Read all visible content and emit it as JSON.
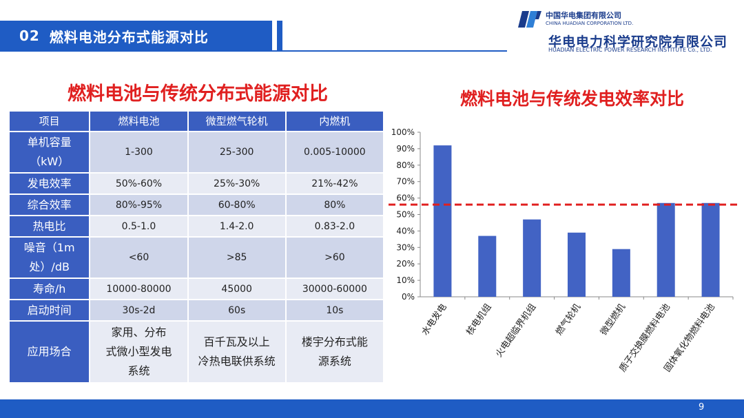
{
  "header": {
    "section_number": "02",
    "section_title": "燃料电池分布式能源对比",
    "group_name_cn": "中国华电集团有限公司",
    "group_name_en": "CHINA HUADIAN CORPORATION LTD.",
    "institute_name_cn": "华电电力科学研究院有限公司",
    "institute_name_en": "HUADIAN ELECTRIC POWER RESEARCH INSTITUTE Co., LTD."
  },
  "left_title": "燃料电池与传统分布式能源对比",
  "right_title": "燃料电池与传统发电效率对比",
  "table": {
    "headers": [
      "项目",
      "燃料电池",
      "微型燃气轮机",
      "内燃机"
    ],
    "rows": [
      {
        "label": [
          "单机容量",
          "（kW）"
        ],
        "values": [
          "1-300",
          "25-300",
          "0.005-10000"
        ]
      },
      {
        "label": [
          "发电效率"
        ],
        "values": [
          "50%-60%",
          "25%-30%",
          "21%-42%"
        ]
      },
      {
        "label": [
          "综合效率"
        ],
        "values": [
          "80%-95%",
          "60-80%",
          "80%"
        ]
      },
      {
        "label": [
          "热电比"
        ],
        "values": [
          "0.5-1.0",
          "1.4-2.0",
          "0.83-2.0"
        ]
      },
      {
        "label": [
          "噪音（1m",
          "处）/dB"
        ],
        "values": [
          "<60",
          ">85",
          ">60"
        ]
      },
      {
        "label": [
          "寿命/h"
        ],
        "values": [
          "10000-80000",
          "45000",
          "30000-60000"
        ]
      },
      {
        "label": [
          "启动时间"
        ],
        "values": [
          "30s-2d",
          "60s",
          "10s"
        ]
      },
      {
        "label": [
          "应用场合"
        ],
        "values": [
          [
            "家用、分布",
            "式微小型发电",
            "系统"
          ],
          [
            "百千瓦及以上",
            "冷热电联供系统"
          ],
          [
            "楼宇分布式能",
            "源系统"
          ]
        ]
      }
    ]
  },
  "chart_data": {
    "type": "bar",
    "title": "燃料电池与传统发电效率对比",
    "xlabel": "",
    "ylabel": "",
    "categories": [
      "水电发电",
      "核电机组",
      "火电超临界机组",
      "燃气轮机",
      "微型燃机",
      "质子交换膜燃料电池",
      "固体氧化物燃料电池"
    ],
    "values": [
      92,
      37,
      47,
      39,
      29,
      57,
      57
    ],
    "ylim": [
      0,
      100
    ],
    "yticks": [
      "0%",
      "10%",
      "20%",
      "30%",
      "40%",
      "50%",
      "60%",
      "70%",
      "80%",
      "90%",
      "100%"
    ],
    "reference_line": 56,
    "grid": false,
    "legend": "none",
    "bar_color": "#4263c4",
    "reference_color": "#e02020"
  },
  "footer": {
    "page_number": "9"
  }
}
